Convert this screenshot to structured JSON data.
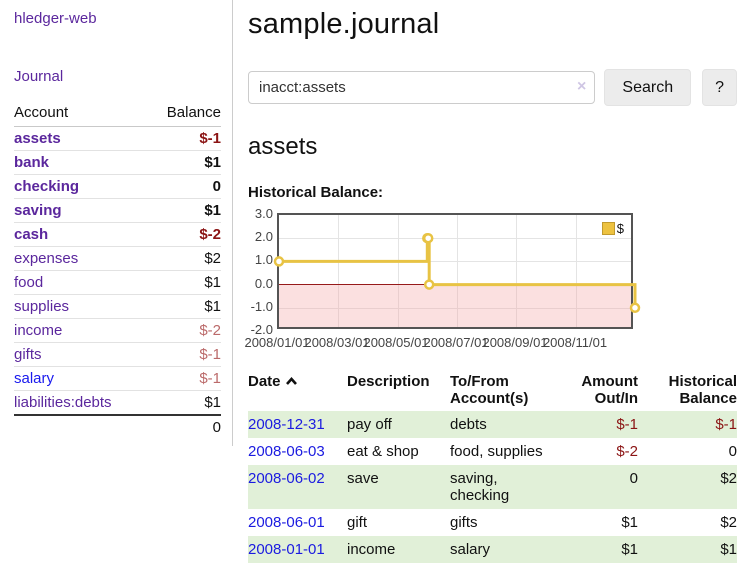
{
  "sidebar": {
    "brand": "hledger-web",
    "journal_link": "Journal",
    "accounts": {
      "header_account": "Account",
      "header_balance": "Balance",
      "rows": [
        {
          "name": "assets",
          "balance": "$-1"
        },
        {
          "name": "bank",
          "balance": "$1"
        },
        {
          "name": "checking",
          "balance": "0"
        },
        {
          "name": "saving",
          "balance": "$1"
        },
        {
          "name": "cash",
          "balance": "$-2"
        },
        {
          "name": "expenses",
          "balance": "$2"
        },
        {
          "name": "food",
          "balance": "$1"
        },
        {
          "name": "supplies",
          "balance": "$1"
        },
        {
          "name": "income",
          "balance": "$-2"
        },
        {
          "name": "gifts",
          "balance": "$-1"
        },
        {
          "name": "salary",
          "balance": "$-1"
        },
        {
          "name": "liabilities:debts",
          "balance": "$1"
        }
      ],
      "total": "0"
    }
  },
  "main": {
    "title": "sample.journal",
    "search": {
      "value": "inacct:assets",
      "clear_icon": "×",
      "button_label": "Search",
      "help_label": "?"
    },
    "account_heading": "assets",
    "chart_title": "Historical Balance:"
  },
  "chart_data": {
    "type": "line",
    "subtype": "step",
    "title": "Historical Balance:",
    "ylim": [
      -2,
      3
    ],
    "yticks": [
      "3.0",
      "2.0",
      "1.0",
      "0.0",
      "-1.0",
      "-2.0"
    ],
    "xticks": [
      "2008/01/01",
      "2008/03/01",
      "2008/05/01",
      "2008/07/01",
      "2008/09/01",
      "2008/11/01"
    ],
    "x_range": [
      "2008-01-01",
      "2008-12-31"
    ],
    "grid": true,
    "legend_position": "top-right",
    "series": [
      {
        "name": "$",
        "color": "#e8c344",
        "points": [
          [
            "2008-01-01",
            1
          ],
          [
            "2008-06-01",
            2
          ],
          [
            "2008-06-02",
            2
          ],
          [
            "2008-06-03",
            0
          ],
          [
            "2008-12-31",
            -1
          ]
        ]
      }
    ],
    "negative_region_color": "#f9d9d9",
    "zero_line_color": "#961a1a"
  },
  "register": {
    "headers": {
      "date": "Date",
      "description": "Description",
      "accounts": "To/From\nAccount(s)",
      "amount": "Amount\nOut/In",
      "balance": "Historical\nBalance"
    },
    "rows": [
      {
        "date": "2008-12-31",
        "description": "pay off",
        "accounts": "debts",
        "amount": "$-1",
        "balance": "$-1"
      },
      {
        "date": "2008-06-03",
        "description": "eat & shop",
        "accounts": "food, supplies",
        "amount": "$-2",
        "balance": "0"
      },
      {
        "date": "2008-06-02",
        "description": "save",
        "accounts": "saving,\nchecking",
        "amount": "0",
        "balance": "$2"
      },
      {
        "date": "2008-06-01",
        "description": "gift",
        "accounts": "gifts",
        "amount": "$1",
        "balance": "$2"
      },
      {
        "date": "2008-01-01",
        "description": "income",
        "accounts": "salary",
        "amount": "$1",
        "balance": "$1"
      }
    ]
  },
  "colors": {
    "link_purple": "#5b279d",
    "link_blue": "#1a1aee",
    "date_link_blue": "#1b1be0",
    "negative_strong": "#8b1414",
    "negative_soft": "#bb6a6a",
    "row_green": "#e1f0d8",
    "series_yellow": "#edc240"
  }
}
